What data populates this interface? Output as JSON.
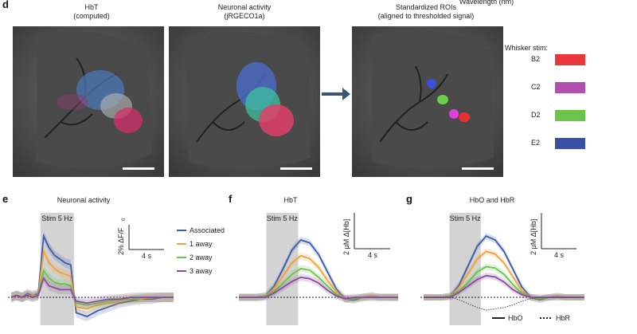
{
  "panel_d": {
    "letter": "d",
    "top_right_label": "Wavelength (nm)",
    "images": [
      {
        "title1": "HbT",
        "title2": "(computed)"
      },
      {
        "title1": "Neuronal activity",
        "title2": "(jRGECO1a)"
      },
      {
        "title1": "Standardized ROIs",
        "title2": "(aligned to thresholded signal)"
      }
    ],
    "legend_title": "Whisker stim:",
    "legend": [
      {
        "label": "B2",
        "color": "#e8383a"
      },
      {
        "label": "C2",
        "color": "#b04fb0"
      },
      {
        "label": "D2",
        "color": "#6cc24a"
      },
      {
        "label": "E2",
        "color": "#3b4fa8"
      }
    ]
  },
  "panel_e": {
    "letter": "e",
    "title": "Neuronal activity",
    "stim_label": "Stim 5 Hz",
    "scale_y": "2% ΔF/F",
    "scale_y_sub": "0",
    "scale_x": "4 s",
    "legend": [
      {
        "label": "Associated",
        "color": "#3b5ba8"
      },
      {
        "label": "1 away",
        "color": "#f0a23c"
      },
      {
        "label": "2 away",
        "color": "#6cc24a"
      },
      {
        "label": "3 away",
        "color": "#8a4a9e"
      }
    ]
  },
  "panel_f": {
    "letter": "f",
    "title": "HbT",
    "stim_label": "Stim 5 Hz",
    "scale_y": "2 μM Δ[Hb]",
    "scale_x": "4 s"
  },
  "panel_g": {
    "letter": "g",
    "title": "HbO and HbR",
    "stim_label": "Stim 5 Hz",
    "scale_y": "2 μM Δ[Hb]",
    "scale_x": "4 s",
    "legend": [
      {
        "label": "HbO",
        "style": "solid"
      },
      {
        "label": "HbR",
        "style": "dotted"
      }
    ]
  },
  "chart_data": [
    {
      "type": "line",
      "x": [
        0,
        0.5,
        1,
        1.5,
        2,
        2.5,
        3,
        3.5,
        4,
        4.5,
        5,
        5.5,
        6,
        7,
        8,
        9,
        10,
        11,
        12,
        13,
        14,
        15
      ],
      "series": [
        {
          "name": "Associated",
          "values": [
            0,
            0.1,
            0,
            0.2,
            0.1,
            0.2,
            3.2,
            2.6,
            2.2,
            2.0,
            1.8,
            1.7,
            -0.8,
            -1.0,
            -0.7,
            -0.5,
            -0.3,
            -0.2,
            -0.1,
            -0.1,
            0,
            0
          ]
        },
        {
          "name": "1 away",
          "values": [
            0,
            0.1,
            0,
            0.1,
            0.1,
            0.1,
            2.4,
            1.8,
            1.5,
            1.3,
            1.2,
            1.1,
            -0.5,
            -0.6,
            -0.4,
            -0.3,
            -0.2,
            -0.1,
            -0.1,
            0,
            0,
            0
          ]
        },
        {
          "name": "2 away",
          "values": [
            0,
            0.1,
            0,
            0.1,
            0,
            0.1,
            1.4,
            1.0,
            0.8,
            0.7,
            0.7,
            0.6,
            -0.3,
            -0.4,
            -0.3,
            -0.2,
            -0.1,
            -0.1,
            0,
            0,
            0,
            0
          ]
        },
        {
          "name": "3 away",
          "values": [
            0,
            0.1,
            0,
            0.1,
            0,
            0.1,
            1.0,
            0.6,
            0.5,
            0.4,
            0.4,
            0.4,
            -0.2,
            -0.3,
            -0.2,
            -0.1,
            -0.1,
            0,
            0,
            0,
            0,
            0
          ]
        }
      ]
    },
    {
      "type": "line",
      "x": [
        0,
        1,
        2,
        3,
        4,
        5,
        6,
        7,
        8,
        9,
        10,
        11,
        12,
        13,
        14,
        15,
        16,
        17,
        18
      ],
      "series": [
        {
          "name": "Associated",
          "values": [
            0,
            0,
            0,
            0.1,
            0.8,
            2.0,
            3.3,
            4.0,
            3.8,
            3.0,
            1.8,
            0.6,
            -0.1,
            -0.2,
            0,
            0.1,
            0,
            0,
            0
          ]
        },
        {
          "name": "1 away",
          "values": [
            0,
            0,
            0,
            0.1,
            0.6,
            1.5,
            2.4,
            2.9,
            2.7,
            2.1,
            1.2,
            0.4,
            -0.1,
            -0.1,
            0,
            0.1,
            0,
            0,
            0
          ]
        },
        {
          "name": "2 away",
          "values": [
            0,
            0,
            0,
            0.1,
            0.4,
            1.0,
            1.6,
            2.0,
            1.9,
            1.4,
            0.8,
            0.2,
            -0.1,
            -0.1,
            0,
            0,
            0,
            0,
            0
          ]
        },
        {
          "name": "3 away",
          "values": [
            0,
            0,
            0,
            0,
            0.3,
            0.7,
            1.1,
            1.4,
            1.3,
            1.0,
            0.5,
            0.1,
            -0.1,
            0,
            0,
            0,
            0,
            0,
            0
          ]
        }
      ]
    },
    {
      "type": "line",
      "x": [
        0,
        1,
        2,
        3,
        4,
        5,
        6,
        7,
        8,
        9,
        10,
        11,
        12,
        13,
        14,
        15,
        16,
        17,
        18
      ],
      "series": [
        {
          "name": "HbO",
          "values": [
            0,
            0,
            0,
            0.1,
            1.0,
            2.5,
            4.0,
            4.8,
            4.5,
            3.6,
            2.2,
            0.8,
            0,
            -0.2,
            0,
            0.1,
            0,
            0,
            0
          ]
        },
        {
          "name": "HbO",
          "values": [
            0,
            0,
            0,
            0.1,
            0.8,
            1.9,
            3.0,
            3.6,
            3.4,
            2.7,
            1.6,
            0.5,
            0,
            -0.1,
            0,
            0.1,
            0,
            0,
            0
          ]
        },
        {
          "name": "HbO",
          "values": [
            0,
            0,
            0,
            0.1,
            0.5,
            1.2,
            2.0,
            2.4,
            2.3,
            1.8,
            1.0,
            0.3,
            0,
            -0.1,
            0,
            0,
            0,
            0,
            0
          ]
        },
        {
          "name": "HbO",
          "values": [
            0,
            0,
            0,
            0,
            0.4,
            0.9,
            1.4,
            1.7,
            1.6,
            1.2,
            0.6,
            0.2,
            0,
            0,
            0,
            0,
            0,
            0,
            0
          ]
        },
        {
          "name": "HbR",
          "values": [
            0,
            0,
            0,
            0,
            -0.2,
            -0.5,
            -0.8,
            -1.0,
            -0.9,
            -0.8,
            -0.6,
            -0.3,
            -0.1,
            0,
            0,
            0,
            0,
            0,
            0
          ]
        }
      ]
    }
  ]
}
